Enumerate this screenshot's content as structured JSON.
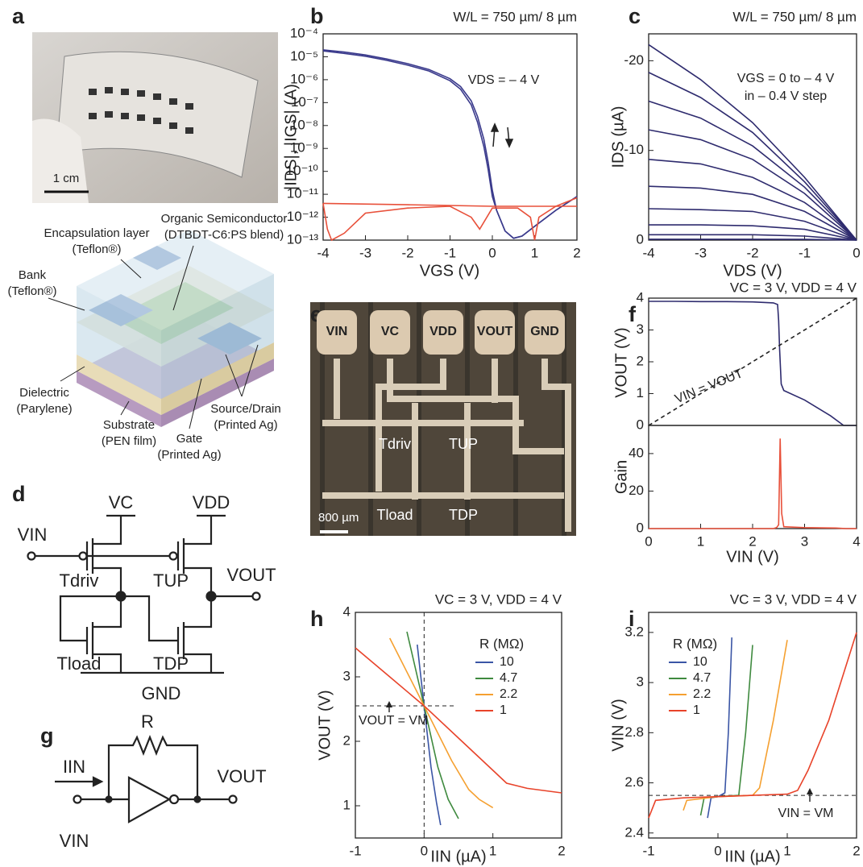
{
  "panels": [
    "a",
    "b",
    "c",
    "d",
    "e",
    "f",
    "g",
    "h",
    "i"
  ],
  "photo_a": {
    "scale": "1 cm"
  },
  "schematic": {
    "labels": [
      [
        "Encapsulation layer",
        "(Teflon®)"
      ],
      [
        "Organic Semiconductor",
        "(DTBDT-C6:PS blend)"
      ],
      [
        "Bank",
        "(Teflon®)"
      ],
      [
        "Dielectric",
        "(Parylene)"
      ],
      [
        "Source/Drain",
        "(Printed Ag)"
      ],
      [
        "Substrate",
        "(PEN film)"
      ],
      [
        "Gate",
        "(Printed Ag)"
      ]
    ]
  },
  "circuit_d": {
    "labels": [
      "VC",
      "VDD",
      "VIN",
      "VOUT",
      "Tdriv",
      "TUP",
      "Tload",
      "TDP",
      "GND"
    ]
  },
  "photo_e": {
    "pads": [
      "VIN",
      "VC",
      "VDD",
      "VOUT",
      "GND"
    ],
    "transistors": [
      "Tdriv",
      "TUP",
      "Tload",
      "TDP"
    ],
    "scale": "800 µm"
  },
  "circuit_g": {
    "labels": [
      "R",
      "IIN",
      "VIN",
      "VOUT"
    ]
  },
  "chart_data": [
    {
      "type": "line",
      "title": "W/L = 750 µm/ 8 µm",
      "xlabel": "VGS (V)",
      "ylabel": "|IDS|, |IGS| (A)",
      "log_y": true,
      "xlim": [
        -4,
        2
      ],
      "xticks": [
        -4,
        -3,
        -2,
        -1,
        0,
        1,
        2
      ],
      "ylim": [
        1e-13,
        0.0001
      ],
      "yticks": [
        {
          "value": 1e-13,
          "label": "10⁻¹³"
        },
        {
          "value": 1e-12,
          "label": "10⁻¹²"
        },
        {
          "value": 1e-11,
          "label": "10⁻¹¹"
        },
        {
          "value": 1e-10,
          "label": "10⁻¹⁰"
        },
        {
          "value": 1e-09,
          "label": "10⁻⁹"
        },
        {
          "value": 1e-08,
          "label": "10⁻⁸"
        },
        {
          "value": 1e-07,
          "label": "10⁻⁷"
        },
        {
          "value": 1e-06,
          "label": "10⁻⁶"
        },
        {
          "value": 1e-05,
          "label": "10⁻⁵"
        },
        {
          "value": 0.0001,
          "label": "10⁻⁴"
        }
      ],
      "annotations": [
        "VDS = – 4 V"
      ],
      "series": [
        {
          "color": "#3a3a8c",
          "x": [
            -4,
            -3.5,
            -3,
            -2.5,
            -2,
            -1.5,
            -1,
            -0.75,
            -0.5,
            -0.35,
            -0.2,
            -0.1,
            0,
            0.1,
            0.3,
            0.5,
            0.7,
            1,
            1.5,
            2
          ],
          "values": [
            2e-05,
            1.6e-05,
            1.2e-05,
            8e-06,
            5e-06,
            2.8e-06,
            1.1e-06,
            5e-07,
            1.2e-07,
            2.5e-08,
            2.5e-09,
            2.5e-10,
            1.5e-11,
            2e-12,
            2.5e-13,
            1.2e-13,
            1.5e-13,
            4e-13,
            2e-12,
            8e-12
          ]
        },
        {
          "color": "#3a3a8c",
          "x": [
            -4,
            -3.5,
            -3,
            -2.5,
            -2,
            -1.5,
            -1,
            -0.75,
            -0.5,
            -0.35,
            -0.2,
            -0.1,
            0,
            0.1,
            0.3,
            0.5,
            0.7,
            1,
            1.5,
            2
          ],
          "values": [
            1.8e-05,
            1.4e-05,
            1.05e-05,
            7e-06,
            4.3e-06,
            2.4e-06,
            9e-07,
            3.8e-07,
            8e-08,
            1.4e-08,
            1.2e-09,
            1.2e-10,
            8e-12,
            2e-12,
            2.5e-13,
            1.2e-13,
            1.5e-13,
            4e-13,
            2e-12,
            8e-12
          ]
        },
        {
          "color": "#e8503a",
          "x": [
            -4,
            -3.9,
            -3.8,
            -3.5,
            -3,
            -2,
            -1,
            -0.5,
            -0.3,
            0,
            0.3,
            0.6,
            0.9,
            1,
            1.1,
            1.5,
            2
          ],
          "values": [
            4e-12,
            3e-13,
            1e-13,
            2e-13,
            1.5e-12,
            2.5e-12,
            3e-12,
            1e-12,
            3e-13,
            2.5e-12,
            2.5e-12,
            2.5e-12,
            1e-12,
            1e-13,
            1e-12,
            3e-12,
            7e-12
          ]
        },
        {
          "color": "#e8503a",
          "x": [
            -4,
            -2,
            0,
            0.5,
            1,
            2
          ],
          "values": [
            4e-12,
            3.5e-12,
            3e-12,
            3e-12,
            3e-12,
            3e-12
          ]
        }
      ]
    },
    {
      "type": "line",
      "title": "W/L = 750 µm/ 8 µm",
      "xlabel": "VDS (V)",
      "ylabel": "IDS (µA)",
      "xlim": [
        -4,
        0
      ],
      "xticks": [
        -4,
        -3,
        -2,
        -1,
        0
      ],
      "ylim": [
        0,
        -23
      ],
      "yticks": [
        0,
        -10,
        -20
      ],
      "annotations": [
        "VGS = 0 to – 4 V",
        "in – 0.4 V step"
      ],
      "x": [
        -4,
        -3,
        -2,
        -1,
        0
      ],
      "series": [
        {
          "color": "#2e2b6e",
          "values": [
            -21.8,
            -17.9,
            -13.1,
            -7.0,
            0
          ]
        },
        {
          "color": "#2e2b6e",
          "values": [
            -18.7,
            -15.9,
            -12.0,
            -6.5,
            0
          ]
        },
        {
          "color": "#2e2b6e",
          "values": [
            -15.5,
            -13.6,
            -10.5,
            -5.9,
            0
          ]
        },
        {
          "color": "#2e2b6e",
          "values": [
            -12.3,
            -11.2,
            -9.0,
            -5.2,
            0
          ]
        },
        {
          "color": "#2e2b6e",
          "values": [
            -9.0,
            -8.5,
            -7.0,
            -4.2,
            0
          ]
        },
        {
          "color": "#2e2b6e",
          "values": [
            -6.0,
            -5.8,
            -5.1,
            -3.2,
            0
          ]
        },
        {
          "color": "#2e2b6e",
          "values": [
            -3.5,
            -3.4,
            -3.2,
            -2.1,
            0
          ]
        },
        {
          "color": "#2e2b6e",
          "values": [
            -1.7,
            -1.7,
            -1.6,
            -1.2,
            0
          ]
        },
        {
          "color": "#2e2b6e",
          "values": [
            -0.6,
            -0.6,
            -0.6,
            -0.45,
            0
          ]
        },
        {
          "color": "#2e2b6e",
          "values": [
            -0.1,
            -0.1,
            -0.1,
            -0.08,
            0
          ]
        }
      ]
    },
    {
      "type": "line",
      "title": "VC = 3 V, VDD = 4 V",
      "ylabel": "VOUT (V)",
      "xlim": [
        0,
        4
      ],
      "ylim": [
        0,
        4
      ],
      "yticks": [
        0,
        1,
        2,
        3,
        4
      ],
      "annotations": [
        "VIN = VOUT"
      ],
      "series": [
        {
          "color": "#2e2b6e",
          "x": [
            0,
            0.5,
            1,
            1.5,
            2,
            2.4,
            2.48,
            2.5,
            2.52,
            2.55,
            2.6,
            3,
            3.5,
            3.75,
            4
          ],
          "values": [
            3.9,
            3.9,
            3.89,
            3.89,
            3.88,
            3.85,
            3.8,
            3.3,
            2.4,
            1.3,
            1.1,
            0.8,
            0.3,
            0,
            0
          ]
        },
        {
          "color": "#222222",
          "dash": true,
          "x": [
            0,
            4
          ],
          "values": [
            0,
            4
          ]
        }
      ]
    },
    {
      "type": "line",
      "xlabel": "VIN (V)",
      "ylabel": "Gain",
      "xlim": [
        0,
        4
      ],
      "xticks": [
        0,
        1,
        2,
        3,
        4
      ],
      "ylim": [
        0,
        55
      ],
      "yticks": [
        0,
        20,
        40
      ],
      "series": [
        {
          "color": "#e8503a",
          "x": [
            0,
            2.4,
            2.46,
            2.5,
            2.53,
            2.56,
            2.6,
            3,
            3.6,
            3.8,
            4
          ],
          "values": [
            0,
            0,
            0.5,
            2,
            48,
            8,
            1,
            0.5,
            0.3,
            0,
            0
          ]
        }
      ]
    },
    {
      "type": "line",
      "title": "VC = 3 V, VDD = 4 V",
      "xlabel": "IIN (µA)",
      "ylabel": "VOUT (V)",
      "xlim": [
        -1,
        2
      ],
      "xticks": [
        -1,
        0,
        1,
        2
      ],
      "ylim": [
        0.5,
        4
      ],
      "yticks": [
        1,
        2,
        3,
        4
      ],
      "ref_x": 0,
      "ref_y": 2.55,
      "annotations": [
        "VOUT = VM"
      ],
      "legend_title": "R (MΩ)",
      "series": [
        {
          "name": "10",
          "color": "#3a55a5",
          "x": [
            -0.1,
            0,
            0.1,
            0.18,
            0.24
          ],
          "values": [
            3.5,
            2.55,
            1.6,
            1.05,
            0.7
          ]
        },
        {
          "name": "4.7",
          "color": "#3f8a3f",
          "x": [
            -0.25,
            0,
            0.2,
            0.35,
            0.5
          ],
          "values": [
            3.7,
            2.55,
            1.6,
            1.1,
            0.8
          ]
        },
        {
          "name": "2.2",
          "color": "#f5a030",
          "x": [
            -0.5,
            0,
            0.4,
            0.65,
            0.8,
            1.0
          ],
          "values": [
            3.6,
            2.55,
            1.7,
            1.25,
            1.1,
            0.97
          ]
        },
        {
          "name": "1",
          "color": "#e8432a",
          "x": [
            -1,
            -0.5,
            0,
            0.5,
            1,
            1.2,
            1.5,
            2
          ],
          "values": [
            3.45,
            3.0,
            2.55,
            2.05,
            1.55,
            1.35,
            1.27,
            1.2
          ]
        }
      ]
    },
    {
      "type": "line",
      "title": "VC = 3 V, VDD = 4 V",
      "xlabel": "IIN (µA)",
      "ylabel": "VIN (V)",
      "xlim": [
        -1,
        2
      ],
      "xticks": [
        -1,
        0,
        1,
        2
      ],
      "ylim": [
        2.38,
        3.28
      ],
      "yticks": [
        2.4,
        2.6,
        2.8,
        3,
        3.2
      ],
      "ref_y": 2.55,
      "annotations": [
        "VIN = VM"
      ],
      "legend_title": "R (MΩ)",
      "series": [
        {
          "name": "10",
          "color": "#3a55a5",
          "x": [
            -0.15,
            -0.1,
            0,
            0.1,
            0.15,
            0.2
          ],
          "values": [
            2.46,
            2.54,
            2.545,
            2.56,
            2.8,
            3.18
          ]
        },
        {
          "name": "4.7",
          "color": "#3f8a3f",
          "x": [
            -0.25,
            -0.2,
            0,
            0.3,
            0.4,
            0.5
          ],
          "values": [
            2.47,
            2.54,
            2.545,
            2.55,
            2.8,
            3.15
          ]
        },
        {
          "name": "2.2",
          "color": "#f5a030",
          "x": [
            -0.5,
            -0.45,
            0,
            0.5,
            0.6,
            0.8,
            1.0
          ],
          "values": [
            2.49,
            2.53,
            2.545,
            2.55,
            2.58,
            2.85,
            3.17
          ]
        },
        {
          "name": "1",
          "color": "#e8432a",
          "x": [
            -1,
            -0.9,
            -0.5,
            0,
            0.5,
            1.0,
            1.15,
            1.3,
            1.6,
            2
          ],
          "values": [
            2.46,
            2.53,
            2.54,
            2.545,
            2.55,
            2.555,
            2.57,
            2.65,
            2.85,
            3.2
          ]
        }
      ]
    }
  ]
}
